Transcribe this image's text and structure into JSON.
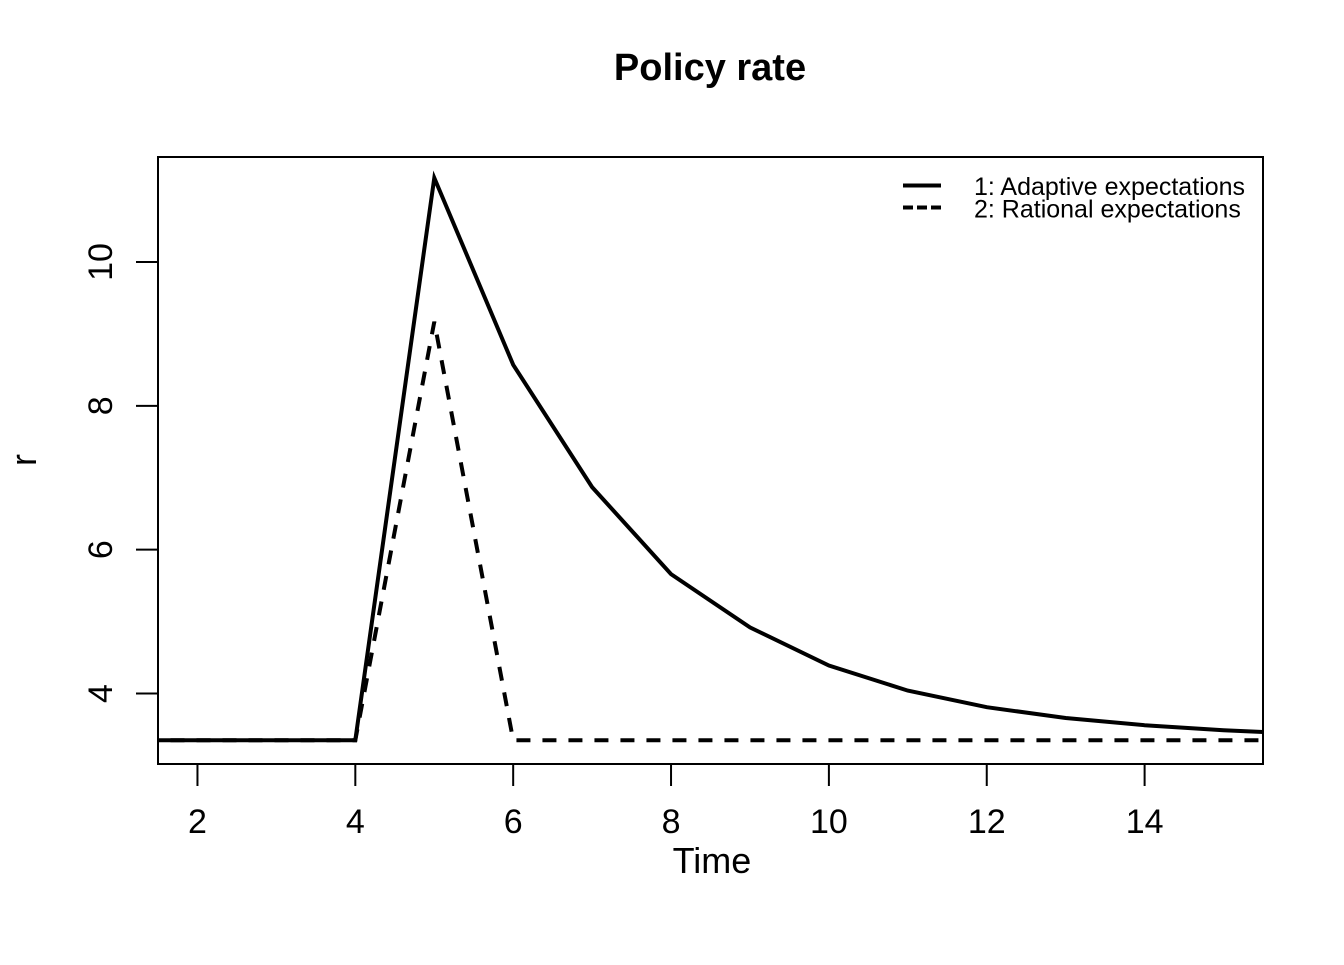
{
  "title": "Policy rate",
  "x_axis": {
    "label": "Time",
    "tick_labels": [
      "2",
      "4",
      "6",
      "8",
      "10",
      "12",
      "14"
    ]
  },
  "y_axis": {
    "label": "r",
    "tick_labels": [
      "4",
      "6",
      "8",
      "10"
    ]
  },
  "legend": {
    "items": [
      {
        "label": "1: Adaptive expectations",
        "style": "solid"
      },
      {
        "label": "2: Rational expectations",
        "style": "dashed"
      }
    ],
    "position": "top-right"
  },
  "colors": {
    "foreground": "#000000",
    "background": "#ffffff"
  },
  "chart_data": {
    "type": "line",
    "title": "Policy rate",
    "xlabel": "Time",
    "ylabel": "r",
    "x": [
      1,
      2,
      3,
      4,
      5,
      6,
      7,
      8,
      9,
      10,
      11,
      12,
      13,
      14,
      15,
      16
    ],
    "series": [
      {
        "name": "1: Adaptive expectations",
        "style": "solid",
        "values": [
          3.35,
          3.35,
          3.35,
          3.35,
          11.17,
          8.57,
          6.87,
          5.66,
          4.92,
          4.39,
          4.04,
          3.81,
          3.66,
          3.56,
          3.49,
          3.44
        ]
      },
      {
        "name": "2: Rational expectations",
        "style": "dashed",
        "values": [
          3.35,
          3.35,
          3.35,
          3.35,
          9.17,
          3.35,
          3.35,
          3.35,
          3.35,
          3.35,
          3.35,
          3.35,
          3.35,
          3.35,
          3.35,
          3.35
        ]
      }
    ],
    "xticks": [
      2,
      4,
      6,
      8,
      10,
      12,
      14
    ],
    "yticks": [
      4,
      6,
      8,
      10
    ],
    "xlim": [
      1.5,
      15.5
    ],
    "ylim": [
      3.02,
      11.46
    ],
    "grid": false,
    "legend_position": "top-right"
  }
}
